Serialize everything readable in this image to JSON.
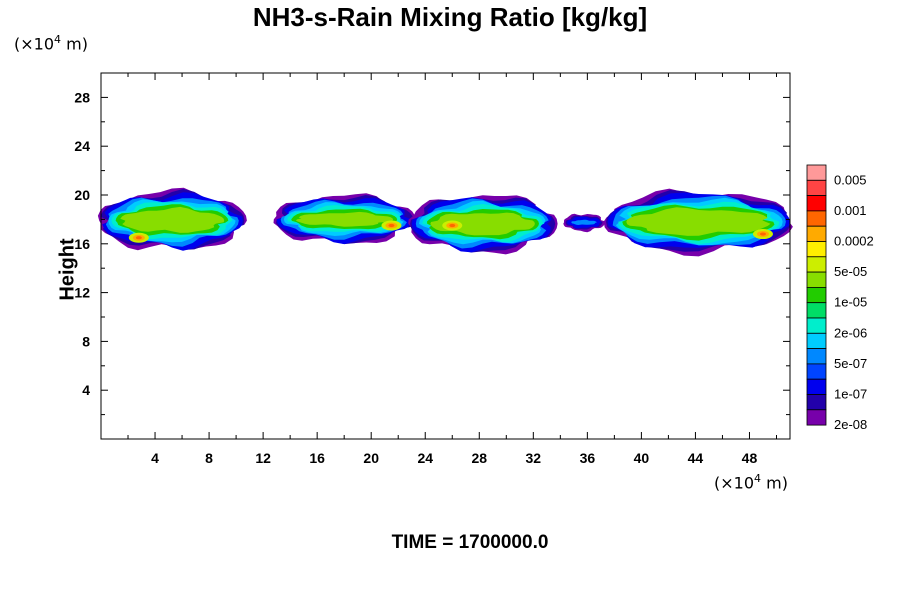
{
  "chart_data": {
    "type": "heatmap",
    "title": "NH3-s-Rain Mixing Ratio [kg/kg]",
    "ylabel": "Height",
    "y_unit_label": "(×10",
    "x_unit_label": "(×10",
    "unit_exponent": "4",
    "unit_suffix": " m)",
    "footer": "TIME = 1700000.0",
    "xlim": [
      0,
      51
    ],
    "ylim": [
      0,
      30
    ],
    "x_ticks": [
      "4",
      "8",
      "12",
      "16",
      "20",
      "24",
      "28",
      "32",
      "36",
      "40",
      "44",
      "48"
    ],
    "y_ticks": [
      "4",
      "8",
      "12",
      "16",
      "20",
      "24",
      "28"
    ],
    "colorbar": {
      "labels": [
        "0.005",
        "0.001",
        "0.0002",
        "5e-05",
        "1e-05",
        "2e-06",
        "5e-07",
        "1e-07",
        "2e-08"
      ],
      "colors": [
        "#ff9999",
        "#ff4444",
        "#ff0000",
        "#ff6600",
        "#ffaa00",
        "#ffee00",
        "#ccee00",
        "#88dd00",
        "#22cc00",
        "#00dd66",
        "#00eecc",
        "#00ccff",
        "#0088ff",
        "#0044ff",
        "#0000ee",
        "#2200aa",
        "#7700aa"
      ]
    },
    "features": [
      {
        "name": "cloud-left",
        "x": [
          0,
          10.5
        ],
        "y": [
          15.8,
          20
        ],
        "core": [
          0.5,
          7
        ],
        "peak": [
          2.8,
          16.5
        ]
      },
      {
        "name": "cloud-center-left",
        "x": [
          13,
          23
        ],
        "y": [
          16.3,
          19.7
        ],
        "core": [
          15.5,
          22.5
        ],
        "peak": [
          21.5,
          17.5
        ]
      },
      {
        "name": "cloud-center",
        "x": [
          23,
          33.5
        ],
        "y": [
          15.6,
          19.7
        ],
        "core": [
          24,
          31
        ],
        "peak": [
          26,
          17.5
        ]
      },
      {
        "name": "cloud-small",
        "x": [
          34.5,
          37
        ],
        "y": [
          17.3,
          18.2
        ],
        "core": null,
        "peak": null
      },
      {
        "name": "cloud-right",
        "x": [
          37.5,
          51
        ],
        "y": [
          15.6,
          20
        ],
        "core": [
          38.5,
          51
        ],
        "peak": [
          49,
          16.8
        ]
      }
    ]
  }
}
